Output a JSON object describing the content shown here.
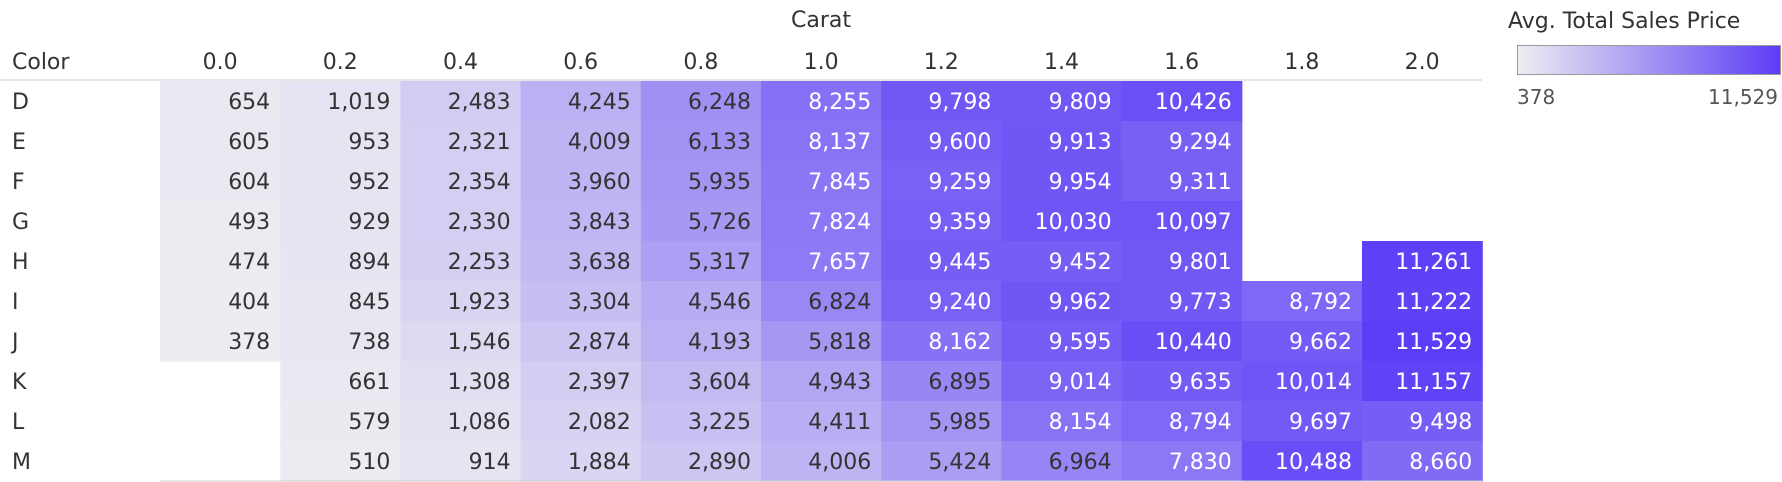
{
  "chart_data": {
    "type": "heatmap",
    "title": "",
    "xlabel": "Carat",
    "ylabel": "Color",
    "x": [
      "0.0",
      "0.2",
      "0.4",
      "0.6",
      "0.8",
      "1.0",
      "1.2",
      "1.4",
      "1.6",
      "1.8",
      "2.0"
    ],
    "y": [
      "D",
      "E",
      "F",
      "G",
      "H",
      "I",
      "J",
      "K",
      "L",
      "M"
    ],
    "values": [
      [
        654,
        1019,
        2483,
        4245,
        6248,
        8255,
        9798,
        9809,
        10426,
        null,
        null
      ],
      [
        605,
        953,
        2321,
        4009,
        6133,
        8137,
        9600,
        9913,
        9294,
        null,
        null
      ],
      [
        604,
        952,
        2354,
        3960,
        5935,
        7845,
        9259,
        9954,
        9311,
        null,
        null
      ],
      [
        493,
        929,
        2330,
        3843,
        5726,
        7824,
        9359,
        10030,
        10097,
        null,
        null
      ],
      [
        474,
        894,
        2253,
        3638,
        5317,
        7657,
        9445,
        9452,
        9801,
        null,
        11261
      ],
      [
        404,
        845,
        1923,
        3304,
        4546,
        6824,
        9240,
        9962,
        9773,
        8792,
        11222
      ],
      [
        378,
        738,
        1546,
        2874,
        4193,
        5818,
        8162,
        9595,
        10440,
        9662,
        11529
      ],
      [
        null,
        661,
        1308,
        2397,
        3604,
        4943,
        6895,
        9014,
        9635,
        10014,
        11157
      ],
      [
        null,
        579,
        1086,
        2082,
        3225,
        4411,
        5985,
        8154,
        8794,
        9697,
        9498
      ],
      [
        null,
        510,
        914,
        1884,
        2890,
        4006,
        5424,
        6964,
        7830,
        10488,
        8660
      ]
    ],
    "legend": {
      "title": "Avg. Total Sales Price",
      "min_label": "378",
      "max_label": "11,529",
      "min": 378,
      "max": 11529,
      "position": "top-right"
    },
    "color_scale": {
      "low": "#ededf1",
      "high": "#5d3cf6"
    }
  }
}
